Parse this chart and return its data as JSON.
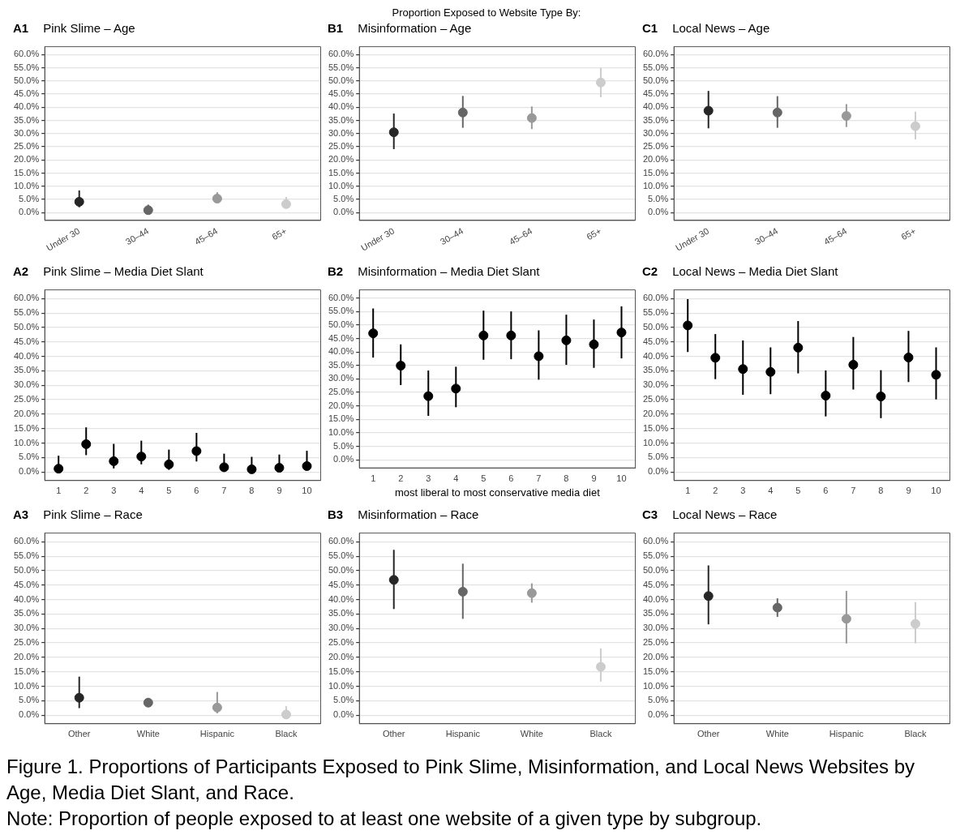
{
  "chart_data": [
    {
      "type": "scatter",
      "title": "A1",
      "subtitle": "Pink Slime – Age",
      "annotations": [
        "Proportion Exposed to Website Type By:"
      ],
      "categories": [
        "Under 30",
        "30–44",
        "45–64",
        "65+"
      ],
      "values": [
        4.1,
        0.9,
        5.3,
        3.2
      ],
      "colors": [
        "#262626",
        "#666666",
        "#999999",
        "#cccccc"
      ],
      "errors": [
        [
          2.0,
          8.4
        ],
        [
          0.2,
          3.0
        ],
        [
          3.8,
          7.7
        ],
        [
          2.0,
          5.9
        ]
      ],
      "ylim": [
        -3,
        63
      ],
      "yticks": [
        {
          "value": 0,
          "label": "0.0%"
        },
        {
          "value": 5,
          "label": "5.0%"
        },
        {
          "value": 10,
          "label": "10.0%"
        },
        {
          "value": 15,
          "label": "15.0%"
        },
        {
          "value": 20,
          "label": "20.0%"
        },
        {
          "value": 25,
          "label": "25.0%"
        },
        {
          "value": 30,
          "label": "30.0%"
        },
        {
          "value": 35,
          "label": "35.0%"
        },
        {
          "value": 40,
          "label": "40.0%"
        },
        {
          "value": 45,
          "label": "45.0%"
        },
        {
          "value": 50,
          "label": "50.0%"
        },
        {
          "value": 55,
          "label": "55.0%"
        },
        {
          "value": 60,
          "label": "60.0%"
        }
      ],
      "grid": "y",
      "marker": "circle"
    },
    {
      "type": "scatter",
      "title": "B1",
      "subtitle": "Misinformation – Age",
      "categories": [
        "Under 30",
        "30–44",
        "45–64",
        "65+"
      ],
      "values": [
        30.5,
        38.0,
        35.9,
        49.4
      ],
      "colors": [
        "#262626",
        "#666666",
        "#999999",
        "#cccccc"
      ],
      "errors": [
        [
          24.1,
          37.6
        ],
        [
          32.2,
          44.3
        ],
        [
          31.7,
          40.3
        ],
        [
          43.8,
          54.9
        ]
      ],
      "ylim": [
        -3,
        63
      ],
      "yticks": [
        {
          "value": 0,
          "label": "0.0%"
        },
        {
          "value": 5,
          "label": "5.0%"
        },
        {
          "value": 10,
          "label": "10.0%"
        },
        {
          "value": 15,
          "label": "15.0%"
        },
        {
          "value": 20,
          "label": "20.0%"
        },
        {
          "value": 25,
          "label": "25.0%"
        },
        {
          "value": 30,
          "label": "30.0%"
        },
        {
          "value": 35,
          "label": "35.0%"
        },
        {
          "value": 40,
          "label": "40.0%"
        },
        {
          "value": 45,
          "label": "45.0%"
        },
        {
          "value": 50,
          "label": "50.0%"
        },
        {
          "value": 55,
          "label": "55.0%"
        },
        {
          "value": 60,
          "label": "60.0%"
        }
      ],
      "grid": "y",
      "marker": "circle"
    },
    {
      "type": "scatter",
      "title": "C1",
      "subtitle": "Local News – Age",
      "categories": [
        "Under 30",
        "30–44",
        "45–64",
        "65+"
      ],
      "values": [
        38.7,
        38.0,
        36.7,
        32.8
      ],
      "colors": [
        "#262626",
        "#666666",
        "#999999",
        "#cccccc"
      ],
      "errors": [
        [
          32.0,
          46.2
        ],
        [
          32.2,
          44.2
        ],
        [
          32.5,
          41.2
        ],
        [
          27.8,
          38.3
        ]
      ],
      "ylim": [
        -3,
        63
      ],
      "yticks": [
        {
          "value": 0,
          "label": "0.0%"
        },
        {
          "value": 5,
          "label": "5.0%"
        },
        {
          "value": 10,
          "label": "10.0%"
        },
        {
          "value": 15,
          "label": "15.0%"
        },
        {
          "value": 20,
          "label": "20.0%"
        },
        {
          "value": 25,
          "label": "25.0%"
        },
        {
          "value": 30,
          "label": "30.0%"
        },
        {
          "value": 35,
          "label": "35.0%"
        },
        {
          "value": 40,
          "label": "40.0%"
        },
        {
          "value": 45,
          "label": "45.0%"
        },
        {
          "value": 50,
          "label": "50.0%"
        },
        {
          "value": 55,
          "label": "55.0%"
        },
        {
          "value": 60,
          "label": "60.0%"
        }
      ],
      "grid": "y",
      "marker": "circle"
    },
    {
      "type": "scatter",
      "title": "A2",
      "subtitle": "Pink Slime – Media Diet Slant",
      "categories": [
        "1",
        "2",
        "3",
        "4",
        "5",
        "6",
        "7",
        "8",
        "9",
        "10"
      ],
      "values": [
        1.1,
        9.6,
        3.7,
        5.3,
        2.6,
        7.2,
        1.6,
        0.9,
        1.4,
        2.0
      ],
      "colors": [
        "#000000",
        "#000000",
        "#000000",
        "#000000",
        "#000000",
        "#000000",
        "#000000",
        "#000000",
        "#000000",
        "#000000"
      ],
      "errors": [
        [
          0.1,
          5.6
        ],
        [
          5.8,
          15.4
        ],
        [
          1.2,
          9.7
        ],
        [
          2.6,
          10.8
        ],
        [
          0.7,
          7.7
        ],
        [
          3.6,
          13.5
        ],
        [
          0.4,
          6.3
        ],
        [
          0.1,
          5.2
        ],
        [
          0.4,
          6.0
        ],
        [
          0.7,
          7.3
        ]
      ],
      "ylim": [
        -3,
        63
      ],
      "yticks": [
        {
          "value": 0,
          "label": "0.0%"
        },
        {
          "value": 5,
          "label": "5.0%"
        },
        {
          "value": 10,
          "label": "10.0%"
        },
        {
          "value": 15,
          "label": "15.0%"
        },
        {
          "value": 20,
          "label": "20.0%"
        },
        {
          "value": 25,
          "label": "25.0%"
        },
        {
          "value": 30,
          "label": "30.0%"
        },
        {
          "value": 35,
          "label": "35.0%"
        },
        {
          "value": 40,
          "label": "40.0%"
        },
        {
          "value": 45,
          "label": "45.0%"
        },
        {
          "value": 50,
          "label": "50.0%"
        },
        {
          "value": 55,
          "label": "55.0%"
        },
        {
          "value": 60,
          "label": "60.0%"
        }
      ],
      "grid": "y",
      "marker": "circle"
    },
    {
      "type": "scatter",
      "title": "B2",
      "subtitle": "Misinformation – Media Diet Slant",
      "xlabel": "most liberal to most conservative media diet",
      "categories": [
        "1",
        "2",
        "3",
        "4",
        "5",
        "6",
        "7",
        "8",
        "9",
        "10"
      ],
      "values": [
        46.9,
        34.9,
        23.6,
        26.4,
        46.1,
        46.1,
        38.4,
        44.3,
        42.8,
        47.2
      ],
      "colors": [
        "#000000",
        "#000000",
        "#000000",
        "#000000",
        "#000000",
        "#000000",
        "#000000",
        "#000000",
        "#000000",
        "#000000"
      ],
      "errors": [
        [
          37.9,
          56.1
        ],
        [
          27.7,
          42.8
        ],
        [
          16.3,
          33.1
        ],
        [
          19.5,
          34.5
        ],
        [
          37.1,
          55.3
        ],
        [
          37.3,
          55.0
        ],
        [
          29.7,
          48.0
        ],
        [
          35.2,
          53.8
        ],
        [
          34.1,
          52.0
        ],
        [
          37.6,
          56.9
        ]
      ],
      "ylim": [
        -3,
        63
      ],
      "yticks": [
        {
          "value": 0,
          "label": "0.0%"
        },
        {
          "value": 5,
          "label": "5.0%"
        },
        {
          "value": 10,
          "label": "10.0%"
        },
        {
          "value": 15,
          "label": "15.0%"
        },
        {
          "value": 20,
          "label": "20.0%"
        },
        {
          "value": 25,
          "label": "25.0%"
        },
        {
          "value": 30,
          "label": "30.0%"
        },
        {
          "value": 35,
          "label": "35.0%"
        },
        {
          "value": 40,
          "label": "40.0%"
        },
        {
          "value": 45,
          "label": "45.0%"
        },
        {
          "value": 50,
          "label": "50.0%"
        },
        {
          "value": 55,
          "label": "55.0%"
        },
        {
          "value": 60,
          "label": "60.0%"
        }
      ],
      "grid": "y",
      "marker": "circle"
    },
    {
      "type": "scatter",
      "title": "C2",
      "subtitle": "Local News – Media Diet Slant",
      "categories": [
        "1",
        "2",
        "3",
        "4",
        "5",
        "6",
        "7",
        "8",
        "9",
        "10"
      ],
      "values": [
        50.7,
        39.5,
        35.6,
        34.6,
        43.0,
        26.4,
        37.1,
        26.1,
        39.6,
        33.6
      ],
      "colors": [
        "#000000",
        "#000000",
        "#000000",
        "#000000",
        "#000000",
        "#000000",
        "#000000",
        "#000000",
        "#000000",
        "#000000"
      ],
      "errors": [
        [
          41.5,
          59.8
        ],
        [
          32.1,
          47.7
        ],
        [
          26.7,
          45.5
        ],
        [
          26.9,
          43.1
        ],
        [
          34.1,
          52.2
        ],
        [
          19.2,
          35.1
        ],
        [
          28.5,
          46.7
        ],
        [
          18.6,
          35.2
        ],
        [
          31.1,
          48.8
        ],
        [
          25.1,
          43.1
        ]
      ],
      "ylim": [
        -3,
        63
      ],
      "yticks": [
        {
          "value": 0,
          "label": "0.0%"
        },
        {
          "value": 5,
          "label": "5.0%"
        },
        {
          "value": 10,
          "label": "10.0%"
        },
        {
          "value": 15,
          "label": "15.0%"
        },
        {
          "value": 20,
          "label": "20.0%"
        },
        {
          "value": 25,
          "label": "25.0%"
        },
        {
          "value": 30,
          "label": "30.0%"
        },
        {
          "value": 35,
          "label": "35.0%"
        },
        {
          "value": 40,
          "label": "40.0%"
        },
        {
          "value": 45,
          "label": "45.0%"
        },
        {
          "value": 50,
          "label": "50.0%"
        },
        {
          "value": 55,
          "label": "55.0%"
        },
        {
          "value": 60,
          "label": "60.0%"
        }
      ],
      "grid": "y",
      "marker": "circle"
    },
    {
      "type": "scatter",
      "title": "A3",
      "subtitle": "Pink Slime – Race",
      "categories": [
        "Other",
        "White",
        "Hispanic",
        "Black"
      ],
      "values": [
        6.0,
        4.3,
        2.6,
        0.2
      ],
      "colors": [
        "#262626",
        "#666666",
        "#999999",
        "#cccccc"
      ],
      "errors": [
        [
          2.4,
          13.3
        ],
        [
          3.3,
          5.8
        ],
        [
          0.6,
          8.0
        ],
        [
          0.0,
          3.1
        ]
      ],
      "ylim": [
        -3,
        63
      ],
      "yticks": [
        {
          "value": 0,
          "label": "0.0%"
        },
        {
          "value": 5,
          "label": "5.0%"
        },
        {
          "value": 10,
          "label": "10.0%"
        },
        {
          "value": 15,
          "label": "15.0%"
        },
        {
          "value": 20,
          "label": "20.0%"
        },
        {
          "value": 25,
          "label": "25.0%"
        },
        {
          "value": 30,
          "label": "30.0%"
        },
        {
          "value": 35,
          "label": "35.0%"
        },
        {
          "value": 40,
          "label": "40.0%"
        },
        {
          "value": 45,
          "label": "45.0%"
        },
        {
          "value": 50,
          "label": "50.0%"
        },
        {
          "value": 55,
          "label": "55.0%"
        },
        {
          "value": 60,
          "label": "60.0%"
        }
      ],
      "grid": "y",
      "marker": "circle"
    },
    {
      "type": "scatter",
      "title": "B3",
      "subtitle": "Misinformation – Race",
      "categories": [
        "Other",
        "Hispanic",
        "White",
        "Black"
      ],
      "values": [
        46.8,
        42.7,
        42.2,
        16.7
      ],
      "colors": [
        "#262626",
        "#666666",
        "#999999",
        "#cccccc"
      ],
      "errors": [
        [
          36.7,
          57.2
        ],
        [
          33.3,
          52.4
        ],
        [
          38.9,
          45.6
        ],
        [
          11.6,
          23.1
        ]
      ],
      "ylim": [
        -3,
        63
      ],
      "yticks": [
        {
          "value": 0,
          "label": "0.0%"
        },
        {
          "value": 5,
          "label": "5.0%"
        },
        {
          "value": 10,
          "label": "10.0%"
        },
        {
          "value": 15,
          "label": "15.0%"
        },
        {
          "value": 20,
          "label": "20.0%"
        },
        {
          "value": 25,
          "label": "25.0%"
        },
        {
          "value": 30,
          "label": "30.0%"
        },
        {
          "value": 35,
          "label": "35.0%"
        },
        {
          "value": 40,
          "label": "40.0%"
        },
        {
          "value": 45,
          "label": "45.0%"
        },
        {
          "value": 50,
          "label": "50.0%"
        },
        {
          "value": 55,
          "label": "55.0%"
        },
        {
          "value": 60,
          "label": "60.0%"
        }
      ],
      "grid": "y",
      "marker": "circle"
    },
    {
      "type": "scatter",
      "title": "C3",
      "subtitle": "Local News – Race",
      "annotations": [
        "Figure 1. Proportions of Participants Exposed to Pink Slime, Misinformation, and Local News Websites by Age, Media Diet Slant, and Race.",
        "Note: Proportion of people exposed to at least one website of a given type by subgroup."
      ],
      "categories": [
        "Other",
        "White",
        "Hispanic",
        "Black"
      ],
      "values": [
        41.2,
        37.2,
        33.3,
        31.6
      ],
      "colors": [
        "#262626",
        "#666666",
        "#999999",
        "#cccccc"
      ],
      "errors": [
        [
          31.4,
          51.8
        ],
        [
          34.0,
          40.4
        ],
        [
          24.8,
          43.0
        ],
        [
          24.8,
          39.1
        ]
      ],
      "ylim": [
        -3,
        63
      ],
      "yticks": [
        {
          "value": 0,
          "label": "0.0%"
        },
        {
          "value": 5,
          "label": "5.0%"
        },
        {
          "value": 10,
          "label": "10.0%"
        },
        {
          "value": 15,
          "label": "15.0%"
        },
        {
          "value": 20,
          "label": "20.0%"
        },
        {
          "value": 25,
          "label": "25.0%"
        },
        {
          "value": 30,
          "label": "30.0%"
        },
        {
          "value": 35,
          "label": "35.0%"
        },
        {
          "value": 40,
          "label": "40.0%"
        },
        {
          "value": 45,
          "label": "45.0%"
        },
        {
          "value": 50,
          "label": "50.0%"
        },
        {
          "value": 55,
          "label": "55.0%"
        },
        {
          "value": 60,
          "label": "60.0%"
        }
      ],
      "grid": "y",
      "marker": "circle"
    }
  ]
}
